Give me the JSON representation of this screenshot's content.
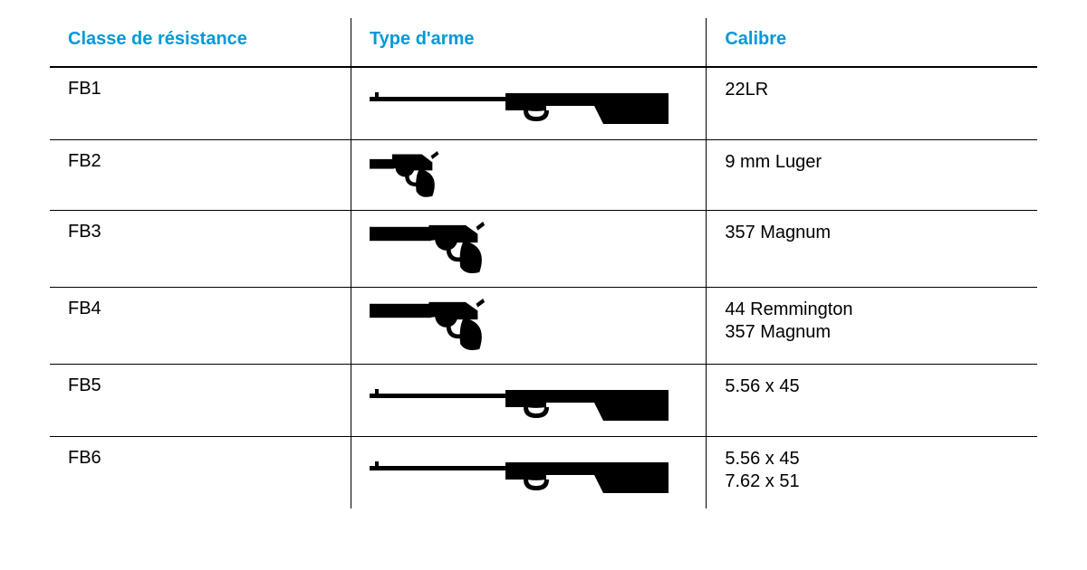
{
  "table": {
    "header_color": "#0099d8",
    "text_color": "#111111",
    "border_color": "#000000",
    "columns": [
      {
        "key": "class",
        "label": "Classe de résistance"
      },
      {
        "key": "type",
        "label": "Type d'arme"
      },
      {
        "key": "caliber",
        "label": "Calibre"
      }
    ],
    "rows": [
      {
        "class": "FB1",
        "weapon": "rifle",
        "caliber": [
          "22LR"
        ]
      },
      {
        "class": "FB2",
        "weapon": "revolver_short",
        "caliber": [
          "9 mm Luger"
        ]
      },
      {
        "class": "FB3",
        "weapon": "revolver_long",
        "caliber": [
          "357 Magnum"
        ]
      },
      {
        "class": "FB4",
        "weapon": "revolver_long",
        "caliber": [
          "44 Remmington",
          "357 Magnum"
        ]
      },
      {
        "class": "FB5",
        "weapon": "rifle",
        "caliber": [
          "5.56 x 45"
        ]
      },
      {
        "class": "FB6",
        "weapon": "rifle",
        "caliber": [
          "5.56 x 45",
          "7.62 x 51"
        ]
      }
    ],
    "icons": {
      "rifle_width": 330,
      "revolver_short_width": 80,
      "revolver_long_width": 130,
      "icon_color": "#000000"
    }
  }
}
